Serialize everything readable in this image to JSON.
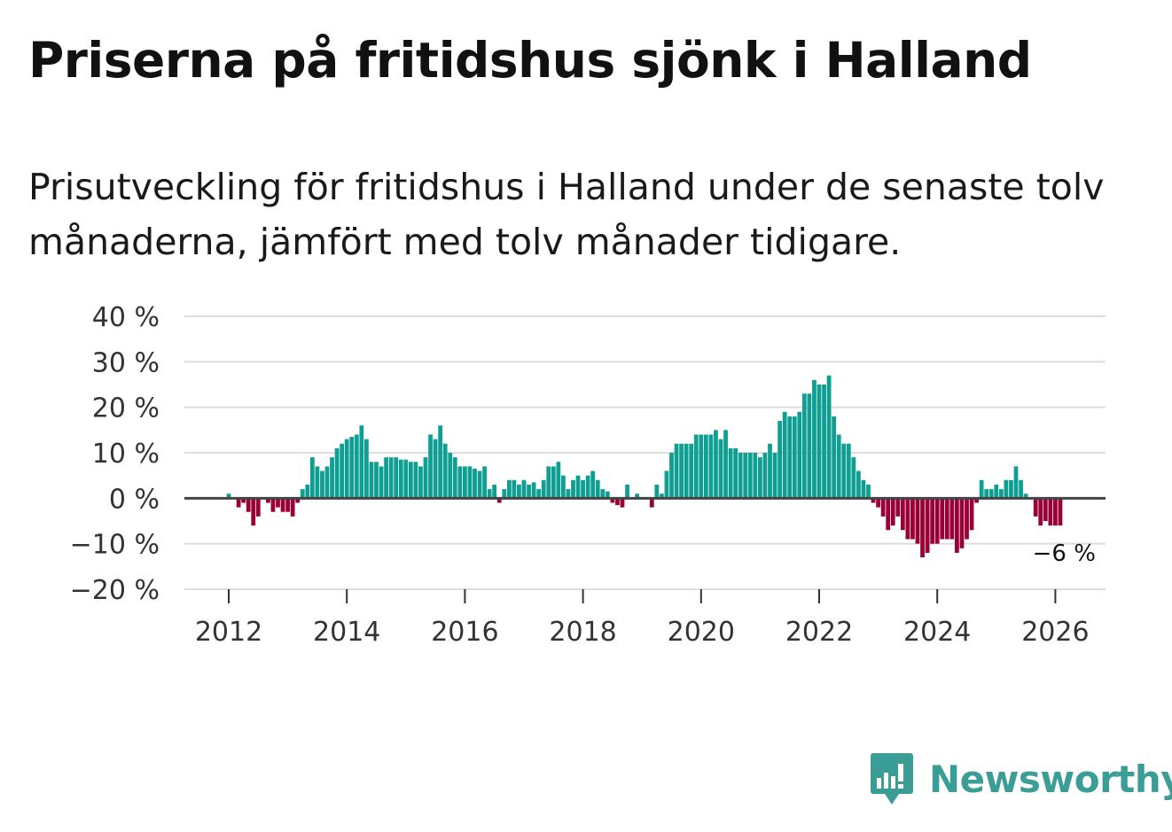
{
  "title": "Priserna på fritidshus sjönk i Halland",
  "subtitle": "Prisutveckling för fritidshus i Halland under de senaste tolv månaderna, jämfört med tolv månader tidigare.",
  "brand": "Newsworthy",
  "colors": {
    "positive": "#0f9e92",
    "negative": "#9a0036",
    "brand": "#3a9e96",
    "grid": "#dddddd",
    "zero_line": "#444444"
  },
  "chart_data": {
    "type": "bar",
    "title": "Priserna på fritidshus sjönk i Halland",
    "ylabel": "",
    "xlabel": "",
    "ylim": [
      -20,
      40
    ],
    "yticks": [
      -20,
      -10,
      0,
      10,
      20,
      30,
      40
    ],
    "ytick_labels": [
      "−20 %",
      "−10 %",
      "0 %",
      "10 %",
      "20 %",
      "30 %",
      "40 %"
    ],
    "xticks": [
      2012,
      2014,
      2016,
      2018,
      2020,
      2022,
      2024,
      2026
    ],
    "xtick_labels": [
      "2012",
      "2014",
      "2016",
      "2018",
      "2020",
      "2022",
      "2024",
      "2026"
    ],
    "x_start": 2012,
    "x_start_month": 1,
    "last_value_label": "−6 %",
    "values": [
      1,
      0,
      -2,
      -1,
      -3,
      -6,
      -4,
      0,
      -1,
      -3,
      -2,
      -3,
      -3,
      -4,
      -1,
      2,
      3,
      9,
      7,
      6,
      7,
      9,
      11,
      12,
      13,
      13.5,
      14,
      16,
      13,
      8,
      8,
      7,
      9,
      9,
      9,
      8.5,
      8.5,
      8,
      8,
      7,
      9,
      14,
      13,
      16,
      12,
      10,
      9,
      7,
      7,
      7,
      6.5,
      6,
      7,
      2,
      3,
      -1,
      2,
      4,
      4,
      3,
      4,
      3,
      3.5,
      2,
      4,
      7,
      7,
      8,
      5,
      2,
      4,
      5,
      4,
      5,
      6,
      4,
      2,
      1.5,
      -1,
      -1.5,
      -2,
      3,
      0,
      1,
      0,
      0,
      -2,
      3,
      1,
      6,
      10,
      12,
      12,
      12,
      12,
      14,
      14,
      14,
      14,
      15,
      13,
      15,
      11,
      11,
      10,
      10,
      10,
      10,
      9,
      10,
      12,
      10,
      17,
      19,
      18,
      18,
      19,
      23,
      23,
      26,
      25,
      25,
      27,
      18,
      14,
      12,
      12,
      9,
      6,
      4,
      3,
      -1,
      -2,
      -4,
      -7,
      -6,
      -4,
      -7,
      -9,
      -9,
      -10,
      -13,
      -12,
      -10,
      -10,
      -9,
      -9,
      -9,
      -12,
      -11,
      -9,
      -7,
      -1,
      4,
      2,
      2,
      3,
      2,
      4,
      4,
      7,
      4,
      1,
      0,
      -4,
      -6,
      -5,
      -6,
      -6,
      -6
    ]
  }
}
